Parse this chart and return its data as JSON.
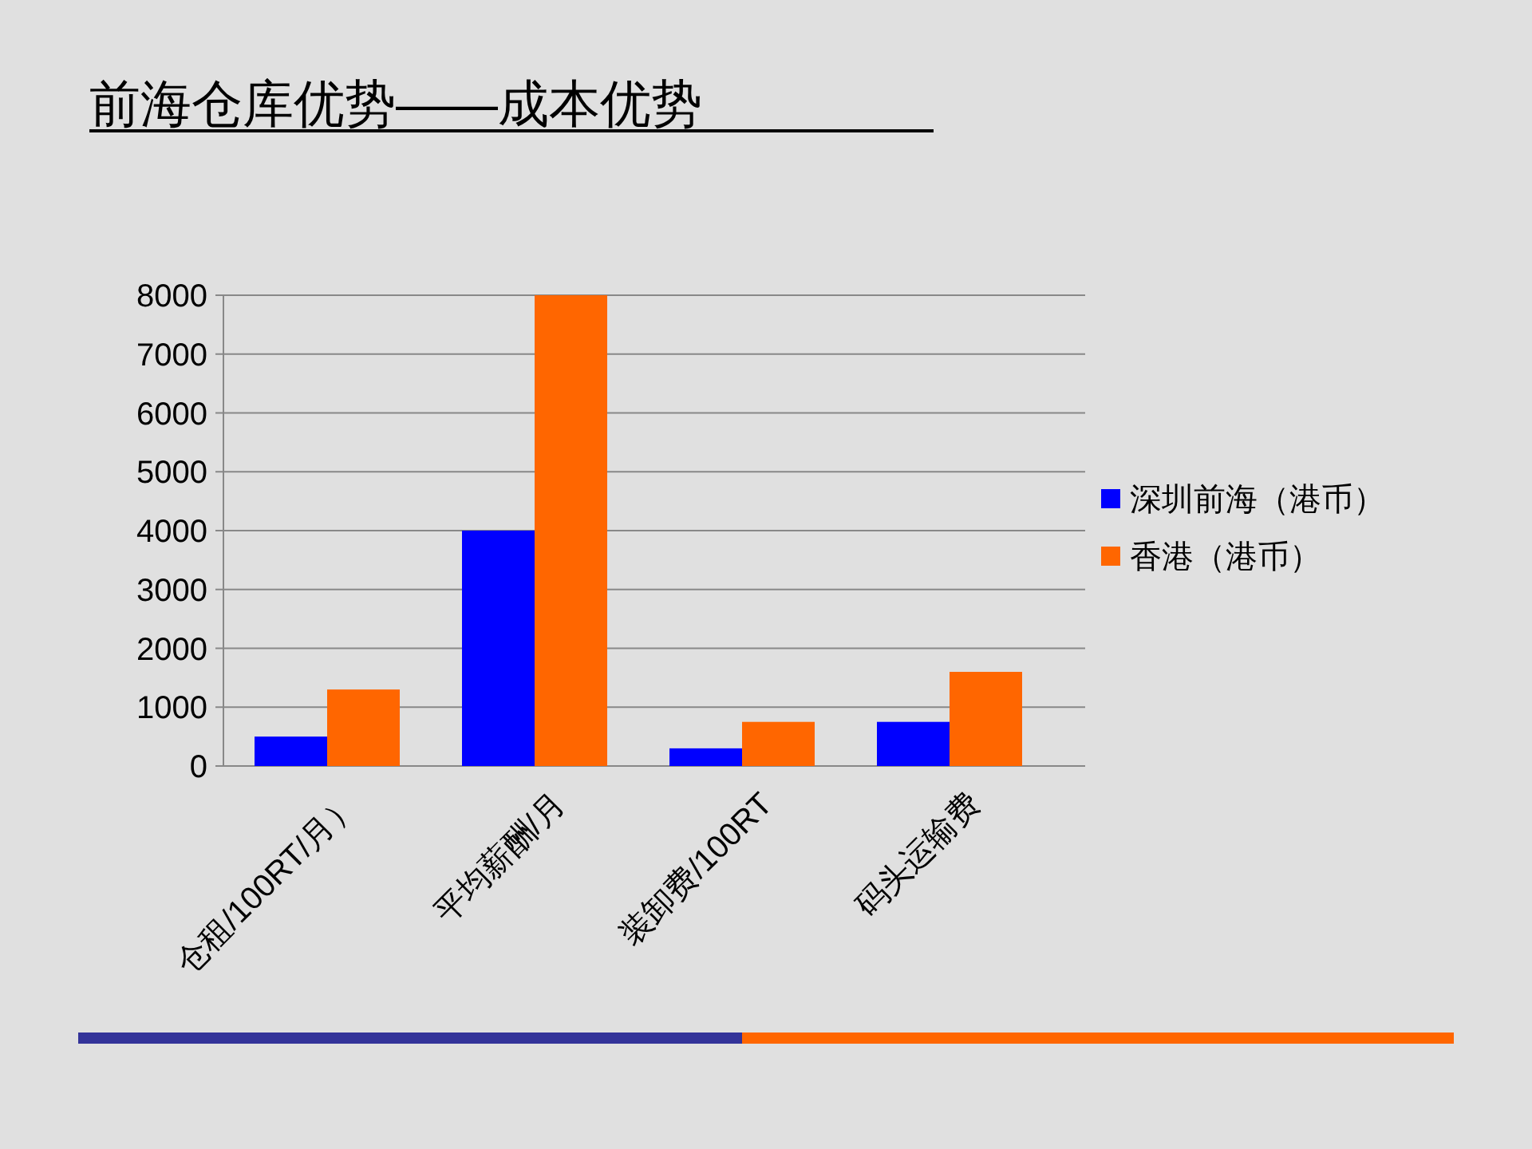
{
  "chart_data": {
    "type": "bar",
    "title": "前海仓库优势——成本优势",
    "categories": [
      "仓租/100RT/月）",
      "平均薪酬/月",
      "装卸费/100RT",
      "码头运输费"
    ],
    "series": [
      {
        "name": "深圳前海（港币）",
        "color": "#0000ff",
        "values": [
          500,
          4000,
          300,
          750
        ]
      },
      {
        "name": "香港（港币）",
        "color": "#ff6600",
        "values": [
          1300,
          8000,
          750,
          1600
        ]
      }
    ],
    "ylim": [
      0,
      8000
    ],
    "yticks": [
      0,
      1000,
      2000,
      3000,
      4000,
      5000,
      6000,
      7000,
      8000
    ],
    "grid": "y",
    "legend": "right"
  }
}
